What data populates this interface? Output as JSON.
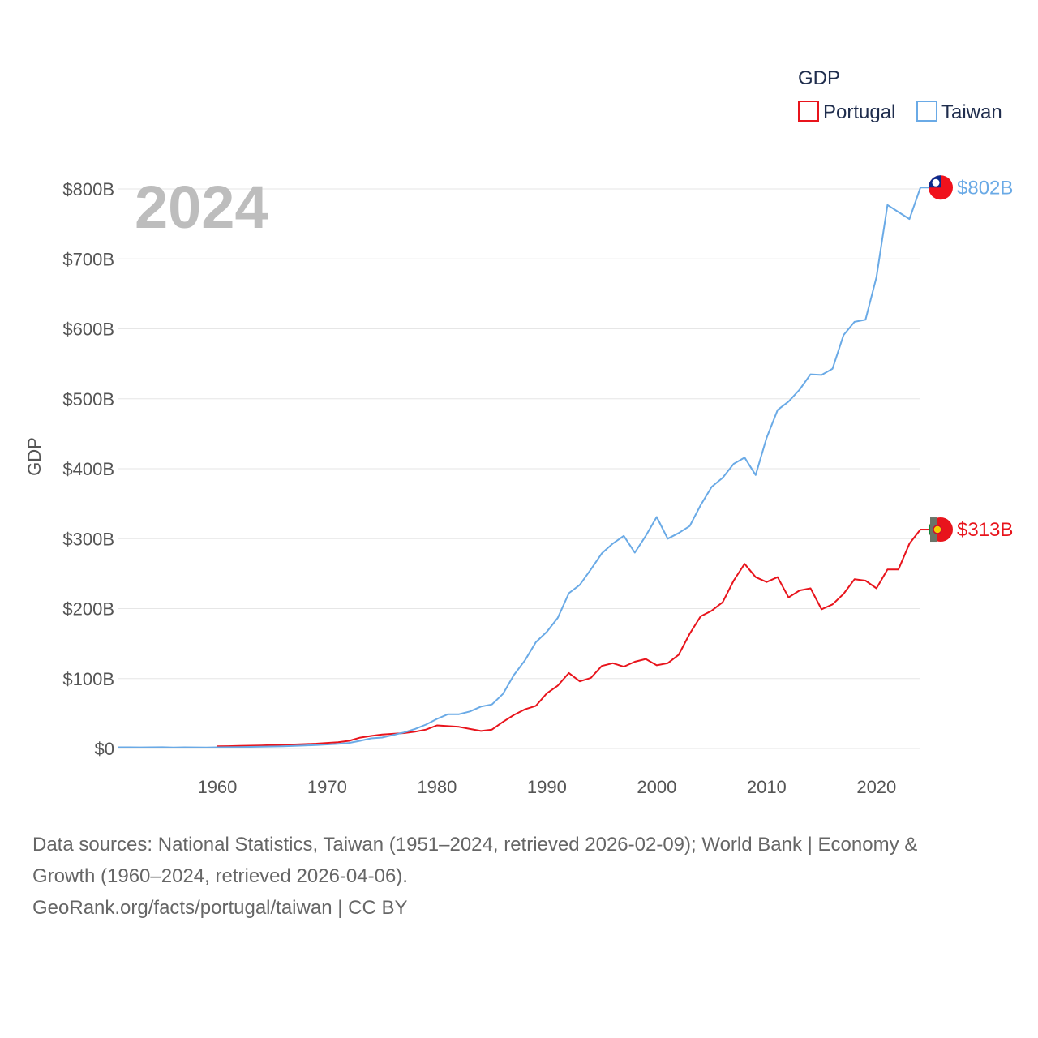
{
  "chart_data": {
    "type": "line",
    "title": "",
    "year_label": "2024",
    "ylabel": "GDP",
    "xlabel": "",
    "xlim": [
      1951,
      2024
    ],
    "ylim": [
      0,
      800
    ],
    "x_ticks": [
      1960,
      1970,
      1980,
      1990,
      2000,
      2010,
      2020
    ],
    "x_tick_labels": [
      "1960",
      "1970",
      "1980",
      "1990",
      "2000",
      "2010",
      "2020"
    ],
    "y_ticks": [
      0,
      100,
      200,
      300,
      400,
      500,
      600,
      700,
      800
    ],
    "y_tick_labels": [
      "$0",
      "$100B",
      "$200B",
      "$300B",
      "$400B",
      "$500B",
      "$600B",
      "$700B",
      "$800B"
    ],
    "units": "billions USD",
    "legend": {
      "title": "GDP",
      "position": "top-right"
    },
    "series": [
      {
        "name": "Portugal",
        "color": "#e8141c",
        "end_label": "$313B",
        "flag_icon": "portugal-flag-icon",
        "points": [
          [
            1960,
            3.2
          ],
          [
            1961,
            3.4
          ],
          [
            1962,
            3.7
          ],
          [
            1963,
            4.0
          ],
          [
            1964,
            4.4
          ],
          [
            1965,
            4.9
          ],
          [
            1966,
            5.3
          ],
          [
            1967,
            5.8
          ],
          [
            1968,
            6.4
          ],
          [
            1969,
            7.0
          ],
          [
            1970,
            8.0
          ],
          [
            1971,
            9.0
          ],
          [
            1972,
            11.0
          ],
          [
            1973,
            15.5
          ],
          [
            1974,
            18.0
          ],
          [
            1975,
            20.0
          ],
          [
            1976,
            21.0
          ],
          [
            1977,
            22.0
          ],
          [
            1978,
            24.0
          ],
          [
            1979,
            27.0
          ],
          [
            1980,
            33.0
          ],
          [
            1981,
            32.0
          ],
          [
            1982,
            31.0
          ],
          [
            1983,
            28.0
          ],
          [
            1984,
            25.0
          ],
          [
            1985,
            27.0
          ],
          [
            1986,
            38.0
          ],
          [
            1987,
            48.0
          ],
          [
            1988,
            56.0
          ],
          [
            1989,
            61.0
          ],
          [
            1990,
            79.0
          ],
          [
            1991,
            90.0
          ],
          [
            1992,
            108.0
          ],
          [
            1993,
            96.0
          ],
          [
            1994,
            101.0
          ],
          [
            1995,
            118.0
          ],
          [
            1996,
            122.0
          ],
          [
            1997,
            117.0
          ],
          [
            1998,
            124.0
          ],
          [
            1999,
            128.0
          ],
          [
            2000,
            119.0
          ],
          [
            2001,
            122.0
          ],
          [
            2002,
            134.0
          ],
          [
            2003,
            164.0
          ],
          [
            2004,
            189.0
          ],
          [
            2005,
            197.0
          ],
          [
            2006,
            209.0
          ],
          [
            2007,
            240.0
          ],
          [
            2008,
            264.0
          ],
          [
            2009,
            245.0
          ],
          [
            2010,
            238.0
          ],
          [
            2011,
            245.0
          ],
          [
            2012,
            216.0
          ],
          [
            2013,
            226.0
          ],
          [
            2014,
            229.0
          ],
          [
            2015,
            199.0
          ],
          [
            2016,
            206.0
          ],
          [
            2017,
            221.0
          ],
          [
            2018,
            242.0
          ],
          [
            2019,
            240.0
          ],
          [
            2020,
            229.0
          ],
          [
            2021,
            256.0
          ],
          [
            2022,
            256.0
          ],
          [
            2023,
            293.0
          ],
          [
            2024,
            313.0
          ]
        ]
      },
      {
        "name": "Taiwan",
        "color": "#6aaae6",
        "end_label": "$802B",
        "flag_icon": "taiwan-flag-icon",
        "points": [
          [
            1951,
            1.7
          ],
          [
            1952,
            1.7
          ],
          [
            1953,
            1.6
          ],
          [
            1954,
            1.7
          ],
          [
            1955,
            1.8
          ],
          [
            1956,
            1.5
          ],
          [
            1957,
            1.7
          ],
          [
            1958,
            1.6
          ],
          [
            1959,
            1.5
          ],
          [
            1960,
            1.7
          ],
          [
            1961,
            1.9
          ],
          [
            1962,
            2.1
          ],
          [
            1963,
            2.3
          ],
          [
            1964,
            2.7
          ],
          [
            1965,
            2.9
          ],
          [
            1966,
            3.2
          ],
          [
            1967,
            3.7
          ],
          [
            1968,
            4.3
          ],
          [
            1969,
            5.0
          ],
          [
            1970,
            5.8
          ],
          [
            1971,
            6.7
          ],
          [
            1972,
            8.0
          ],
          [
            1973,
            11.0
          ],
          [
            1974,
            14.5
          ],
          [
            1975,
            15.7
          ],
          [
            1976,
            19.2
          ],
          [
            1977,
            22.9
          ],
          [
            1978,
            27.9
          ],
          [
            1979,
            34.2
          ],
          [
            1980,
            42.3
          ],
          [
            1981,
            49.0
          ],
          [
            1982,
            49.0
          ],
          [
            1983,
            53.0
          ],
          [
            1984,
            60.0
          ],
          [
            1985,
            63.0
          ],
          [
            1986,
            78.0
          ],
          [
            1987,
            105.0
          ],
          [
            1988,
            126.0
          ],
          [
            1989,
            152.0
          ],
          [
            1990,
            167.0
          ],
          [
            1991,
            187.0
          ],
          [
            1992,
            222.0
          ],
          [
            1993,
            234.0
          ],
          [
            1994,
            256.0
          ],
          [
            1995,
            279.0
          ],
          [
            1996,
            293.0
          ],
          [
            1997,
            304.0
          ],
          [
            1998,
            280.0
          ],
          [
            1999,
            304.0
          ],
          [
            2000,
            331.0
          ],
          [
            2001,
            300.0
          ],
          [
            2002,
            308.0
          ],
          [
            2003,
            318.0
          ],
          [
            2004,
            348.0
          ],
          [
            2005,
            374.0
          ],
          [
            2006,
            387.0
          ],
          [
            2007,
            407.0
          ],
          [
            2008,
            416.0
          ],
          [
            2009,
            391.0
          ],
          [
            2010,
            444.0
          ],
          [
            2011,
            484.0
          ],
          [
            2012,
            496.0
          ],
          [
            2013,
            513.0
          ],
          [
            2014,
            535.0
          ],
          [
            2015,
            534.0
          ],
          [
            2016,
            543.0
          ],
          [
            2017,
            591.0
          ],
          [
            2018,
            610.0
          ],
          [
            2019,
            613.0
          ],
          [
            2020,
            674.0
          ],
          [
            2021,
            777.0
          ],
          [
            2022,
            767.0
          ],
          [
            2023,
            757.0
          ],
          [
            2024,
            802.0
          ]
        ]
      }
    ]
  },
  "footer": {
    "sources_line1": "Data sources: National Statistics, Taiwan (1951–2024, retrieved 2026-02-09); World Bank | Economy &",
    "sources_line2": "Growth (1960–2024, retrieved 2026-04-06).",
    "attribution": "GeoRank.org/facts/portugal/taiwan | CC BY"
  }
}
